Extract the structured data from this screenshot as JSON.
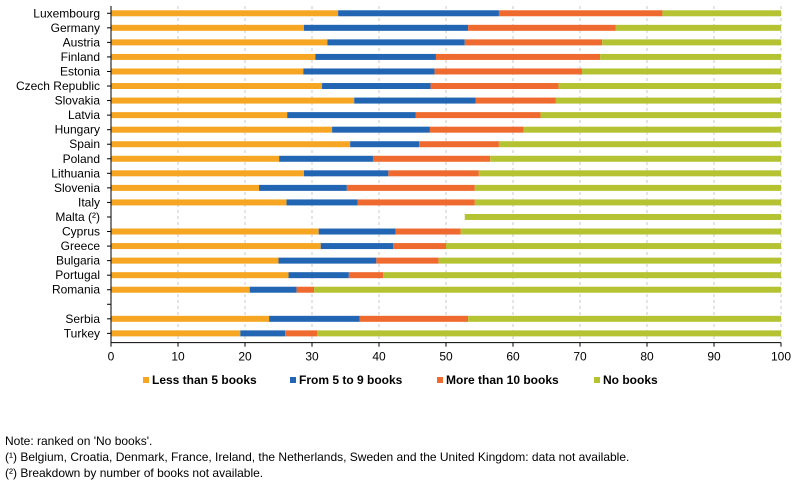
{
  "chart_data": {
    "type": "bar",
    "orientation": "horizontal",
    "stacked": true,
    "categories": [
      "Luxembourg",
      "Germany",
      "Austria",
      "Finland",
      "Estonia",
      "Czech Republic",
      "Slovakia",
      "Latvia",
      "Hungary",
      "Spain",
      "Poland",
      "Lithuania",
      "Slovenia",
      "Italy",
      "Malta (²)",
      "Cyprus",
      "Greece",
      "Bulgaria",
      "Portugal",
      "Romania",
      "",
      "Serbia",
      "Turkey"
    ],
    "series": [
      {
        "name": "Less than 5 books",
        "color": "#f6a623",
        "values": [
          33.9,
          28.8,
          32.3,
          30.5,
          28.7,
          31.5,
          36.3,
          26.3,
          33.0,
          35.7,
          25.1,
          28.8,
          22.1,
          26.2,
          null,
          31.0,
          31.3,
          25.0,
          26.5,
          20.7,
          null,
          23.6,
          19.3
        ]
      },
      {
        "name": "From 5 to 9 books",
        "color": "#2266b3",
        "values": [
          24.0,
          24.5,
          20.5,
          18.0,
          19.6,
          16.2,
          18.1,
          19.2,
          14.6,
          10.3,
          14.0,
          12.6,
          13.1,
          10.6,
          null,
          11.5,
          10.8,
          14.6,
          9.0,
          7.0,
          null,
          13.5,
          6.7
        ]
      },
      {
        "name": "More than 10 books",
        "color": "#ee6a2e",
        "values": [
          24.4,
          22.0,
          20.5,
          24.5,
          22.0,
          19.1,
          12.0,
          18.6,
          14.0,
          11.9,
          17.5,
          13.5,
          19.1,
          17.5,
          null,
          9.7,
          7.9,
          9.3,
          5.1,
          2.6,
          null,
          16.2,
          4.8
        ]
      },
      {
        "name": "No books",
        "color": "#b5c333",
        "values": [
          17.7,
          24.7,
          26.7,
          27.0,
          29.7,
          33.2,
          33.6,
          35.9,
          38.4,
          42.1,
          43.4,
          45.1,
          45.7,
          45.7,
          47.2,
          47.8,
          50.0,
          51.1,
          59.4,
          69.7,
          null,
          46.7,
          69.2
        ]
      }
    ],
    "xlim": [
      0,
      100
    ],
    "xticks": [
      "0",
      "10",
      "20",
      "30",
      "40",
      "50",
      "60",
      "70",
      "80",
      "90",
      "100"
    ],
    "grid": "vertical dashed",
    "legend_position": "bottom"
  },
  "notes": [
    "Note: ranked on 'No books'.",
    "(¹) Belgium, Croatia, Denmark, France, Ireland, the Netherlands, Sweden and the United Kingdom: data not available.",
    "(²) Breakdown by number of books not available."
  ]
}
